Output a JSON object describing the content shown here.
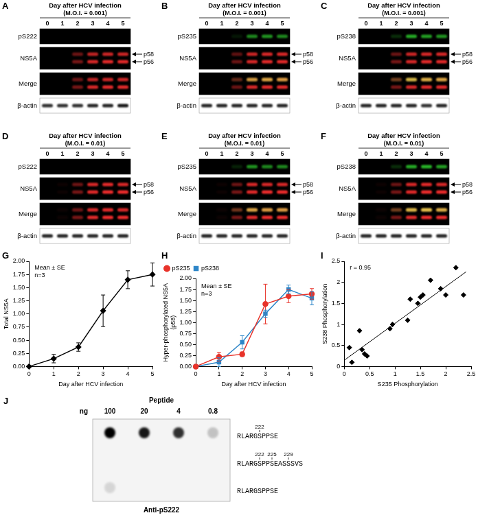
{
  "blots": [
    {
      "label": "A",
      "header": "Day after HCV infection",
      "moi": "(M.O.I. = 0.001)",
      "lanes": [
        "0",
        "1",
        "2",
        "3",
        "4",
        "5"
      ],
      "rows": [
        {
          "name": "pS222",
          "color": "#33e033",
          "bands": [
            {
              "values": [
                0,
                0,
                0,
                0,
                0,
                0
              ]
            }
          ]
        },
        {
          "name": "NS5A",
          "color": "#ee2a2a",
          "bands": [
            {
              "name": "p58",
              "values": [
                0,
                0,
                0.45,
                0.8,
                0.85,
                0.85
              ]
            },
            {
              "name": "p56",
              "values": [
                0,
                0,
                0.5,
                0.9,
                0.95,
                0.95
              ]
            }
          ]
        },
        {
          "name": "Merge",
          "type": "merge"
        },
        {
          "name": "β-actin",
          "color": "#000000",
          "bands": [
            {
              "values": [
                0.8,
                0.8,
                0.8,
                0.85,
                0.85,
                0.9
              ]
            }
          ]
        }
      ]
    },
    {
      "label": "B",
      "header": "Day after HCV infection",
      "moi": "(M.O.I. = 0.001)",
      "lanes": [
        "0",
        "1",
        "2",
        "3",
        "4",
        "5"
      ],
      "rows": [
        {
          "name": "pS235",
          "color": "#33e033",
          "bands": [
            {
              "values": [
                0,
                0,
                0.1,
                0.6,
                0.65,
                0.6
              ]
            }
          ]
        },
        {
          "name": "NS5A",
          "color": "#ee2a2a",
          "bands": [
            {
              "name": "p58",
              "values": [
                0,
                0,
                0.4,
                0.85,
                0.9,
                0.9
              ]
            },
            {
              "name": "p56",
              "values": [
                0,
                0,
                0.45,
                0.9,
                0.95,
                0.95
              ]
            }
          ]
        },
        {
          "name": "Merge",
          "type": "merge"
        },
        {
          "name": "β-actin",
          "color": "#000000",
          "bands": [
            {
              "values": [
                0.85,
                0.85,
                0.85,
                0.85,
                0.85,
                0.85
              ]
            }
          ]
        }
      ]
    },
    {
      "label": "C",
      "header": "Day after HCV infection",
      "moi": "(M.O.I. = 0.001)",
      "lanes": [
        "0",
        "1",
        "2",
        "3",
        "4",
        "5"
      ],
      "rows": [
        {
          "name": "pS238",
          "color": "#33e033",
          "bands": [
            {
              "values": [
                0,
                0,
                0.2,
                0.75,
                0.7,
                0.65
              ]
            }
          ]
        },
        {
          "name": "NS5A",
          "color": "#ee2a2a",
          "bands": [
            {
              "name": "p58",
              "values": [
                0,
                0,
                0.45,
                0.85,
                0.9,
                0.9
              ]
            },
            {
              "name": "p56",
              "values": [
                0,
                0,
                0.5,
                0.9,
                0.95,
                0.95
              ]
            }
          ]
        },
        {
          "name": "Merge",
          "type": "merge"
        },
        {
          "name": "β-actin",
          "color": "#000000",
          "bands": [
            {
              "values": [
                0.85,
                0.85,
                0.85,
                0.85,
                0.8,
                0.85
              ]
            }
          ]
        }
      ]
    },
    {
      "label": "D",
      "header": "Day after HCV infection",
      "moi": "(M.O.I. = 0.01)",
      "lanes": [
        "0",
        "1",
        "2",
        "3",
        "4",
        "5"
      ],
      "rows": [
        {
          "name": "pS222",
          "color": "#33e033",
          "bands": [
            {
              "values": [
                0,
                0,
                0,
                0,
                0,
                0
              ]
            }
          ]
        },
        {
          "name": "NS5A",
          "color": "#ee2a2a",
          "bands": [
            {
              "name": "p58",
              "values": [
                0,
                0.05,
                0.45,
                0.9,
                0.95,
                0.9
              ]
            },
            {
              "name": "p56",
              "values": [
                0,
                0.05,
                0.5,
                0.95,
                1,
                1
              ]
            }
          ]
        },
        {
          "name": "Merge",
          "type": "merge"
        },
        {
          "name": "β-actin",
          "color": "#000000",
          "bands": [
            {
              "values": [
                0.85,
                0.85,
                0.85,
                0.85,
                0.85,
                0.85
              ]
            }
          ]
        }
      ]
    },
    {
      "label": "E",
      "header": "Day after HCV infection",
      "moi": "(M.O.I. = 0.01)",
      "lanes": [
        "0",
        "1",
        "2",
        "3",
        "4",
        "5"
      ],
      "rows": [
        {
          "name": "pS235",
          "color": "#33e033",
          "bands": [
            {
              "values": [
                0,
                0,
                0.15,
                0.65,
                0.6,
                0.6
              ]
            }
          ]
        },
        {
          "name": "NS5A",
          "color": "#ee2a2a",
          "bands": [
            {
              "name": "p58",
              "values": [
                0,
                0.05,
                0.45,
                0.9,
                0.9,
                0.9
              ]
            },
            {
              "name": "p56",
              "values": [
                0,
                0.05,
                0.5,
                0.95,
                1,
                1
              ]
            }
          ]
        },
        {
          "name": "Merge",
          "type": "merge"
        },
        {
          "name": "β-actin",
          "color": "#000000",
          "bands": [
            {
              "values": [
                0.85,
                0.85,
                0.85,
                0.85,
                0.85,
                0.85
              ]
            }
          ]
        }
      ]
    },
    {
      "label": "F",
      "header": "Day after HCV infection",
      "moi": "(M.O.I. = 0.01)",
      "lanes": [
        "0",
        "1",
        "2",
        "3",
        "4",
        "5"
      ],
      "rows": [
        {
          "name": "pS238",
          "color": "#33e033",
          "bands": [
            {
              "values": [
                0,
                0,
                0.2,
                0.75,
                0.8,
                0.7
              ]
            }
          ]
        },
        {
          "name": "NS5A",
          "color": "#ee2a2a",
          "bands": [
            {
              "name": "p58",
              "values": [
                0,
                0.05,
                0.45,
                0.9,
                0.95,
                0.9
              ]
            },
            {
              "name": "p56",
              "values": [
                0,
                0.05,
                0.5,
                0.95,
                1,
                1
              ]
            }
          ]
        },
        {
          "name": "Merge",
          "type": "merge"
        },
        {
          "name": "β-actin",
          "color": "#000000",
          "bands": [
            {
              "values": [
                0.85,
                0.85,
                0.85,
                0.85,
                0.85,
                0.85
              ]
            }
          ]
        }
      ]
    }
  ],
  "chart_data": [
    {
      "panel": "G",
      "type": "line",
      "x_label": "Day after HCV infection",
      "y_label": "Total NS5A",
      "annotations": [
        "Mean ± SE",
        "n=3"
      ],
      "x": [
        0,
        1,
        2,
        3,
        4,
        5
      ],
      "values": [
        0,
        0.15,
        0.37,
        1.06,
        1.65,
        1.75
      ],
      "errors": [
        0,
        0.08,
        0.08,
        0.3,
        0.17,
        0.22
      ],
      "color": "#000000",
      "marker": "diamond",
      "grid": false,
      "xlim": [
        0,
        5
      ],
      "xticks": [
        0,
        1,
        2,
        3,
        4,
        5
      ],
      "ylim": [
        0,
        2
      ],
      "yticks": [
        {
          "value": 0,
          "label": "0.00"
        },
        {
          "value": 0.25,
          "label": "0.25"
        },
        {
          "value": 0.5,
          "label": "0.50"
        },
        {
          "value": 0.75,
          "label": "0.75"
        },
        {
          "value": 1,
          "label": "1.00"
        },
        {
          "value": 1.25,
          "label": "1.25"
        },
        {
          "value": 1.5,
          "label": "1.50"
        },
        {
          "value": 1.75,
          "label": "1.75"
        },
        {
          "value": 2,
          "label": "2.00"
        }
      ]
    },
    {
      "panel": "H",
      "type": "line",
      "x_label": "Day after HCV infection",
      "y_label": "Hyper-phosphorylated NS5A (p58)",
      "annotations": [
        "Mean ± SE",
        "n=3"
      ],
      "legend": "top-left",
      "grid": false,
      "x": [
        0,
        1,
        2,
        3,
        4,
        5
      ],
      "series": [
        {
          "name": "pS235",
          "color": "#e8332a",
          "marker": "circle",
          "values": [
            0,
            0.22,
            0.28,
            1.42,
            1.6,
            1.65
          ],
          "errors": [
            0,
            0.1,
            0.05,
            0.45,
            0.15,
            0.12
          ]
        },
        {
          "name": "pS238",
          "color": "#2e86c8",
          "marker": "square",
          "values": [
            0,
            0.1,
            0.55,
            1.2,
            1.75,
            1.55
          ],
          "errors": [
            0,
            0.1,
            0.15,
            0.08,
            0.1,
            0.15
          ]
        }
      ],
      "xlim": [
        0,
        5
      ],
      "xticks": [
        0,
        1,
        2,
        3,
        4,
        5
      ],
      "ylim": [
        0,
        2
      ],
      "yticks": [
        {
          "value": 0,
          "label": "0.00"
        },
        {
          "value": 0.25,
          "label": "0.25"
        },
        {
          "value": 0.5,
          "label": "0.50"
        },
        {
          "value": 0.75,
          "label": "0.75"
        },
        {
          "value": 1,
          "label": "1.00"
        },
        {
          "value": 1.25,
          "label": "1.25"
        },
        {
          "value": 1.5,
          "label": "1.50"
        },
        {
          "value": 1.75,
          "label": "1.75"
        },
        {
          "value": 2,
          "label": "2.00"
        }
      ]
    },
    {
      "panel": "I",
      "type": "scatter",
      "x_label": "S235 Phosphorylation",
      "y_label": "S238 Phosphorylation",
      "annotations": [
        "r = 0.95"
      ],
      "color": "#000000",
      "marker": "diamond",
      "grid": false,
      "x": [
        0.1,
        0.15,
        0.3,
        0.35,
        0.4,
        0.45,
        0.9,
        0.95,
        1.25,
        1.3,
        1.45,
        1.5,
        1.55,
        1.7,
        1.9,
        2.0,
        2.2,
        2.35
      ],
      "values": [
        0.45,
        0.1,
        0.85,
        0.4,
        0.3,
        0.25,
        0.9,
        1.0,
        1.1,
        1.6,
        1.5,
        1.65,
        1.7,
        2.05,
        1.85,
        1.7,
        2.35,
        1.7
      ],
      "trend_line": {
        "x": [
          0,
          2.4
        ],
        "y": [
          0.15,
          2.25
        ]
      },
      "xlim": [
        0,
        2.5
      ],
      "xticks": [
        0,
        0.5,
        1,
        1.5,
        2,
        2.5
      ],
      "ylim": [
        0,
        2.5
      ],
      "yticks": [
        0,
        0.5,
        1,
        1.5,
        2,
        2.5
      ]
    }
  ],
  "dot_blot": {
    "panel": "J",
    "header": "Peptide",
    "amount_label": "ng",
    "amounts": [
      100,
      20,
      4,
      0.8
    ],
    "antibody": "Anti-pS222",
    "rows": [
      {
        "sequence": "RLARGSPPSE",
        "sites": [
          {
            "label": "222",
            "position": 5
          }
        ],
        "values": [
          1,
          0.9,
          0.8,
          0.2
        ]
      },
      {
        "sequence": "RLARGSPPSEASSSVS",
        "sites": [
          {
            "label": "222",
            "position": 5
          },
          {
            "label": "225",
            "position": 8
          },
          {
            "label": "229",
            "position": 12
          }
        ],
        "values": [
          0,
          0,
          0,
          0
        ]
      },
      {
        "sequence": "RLARGSPPSE",
        "sites": [],
        "values": [
          0.12,
          0,
          0,
          0
        ]
      }
    ]
  }
}
